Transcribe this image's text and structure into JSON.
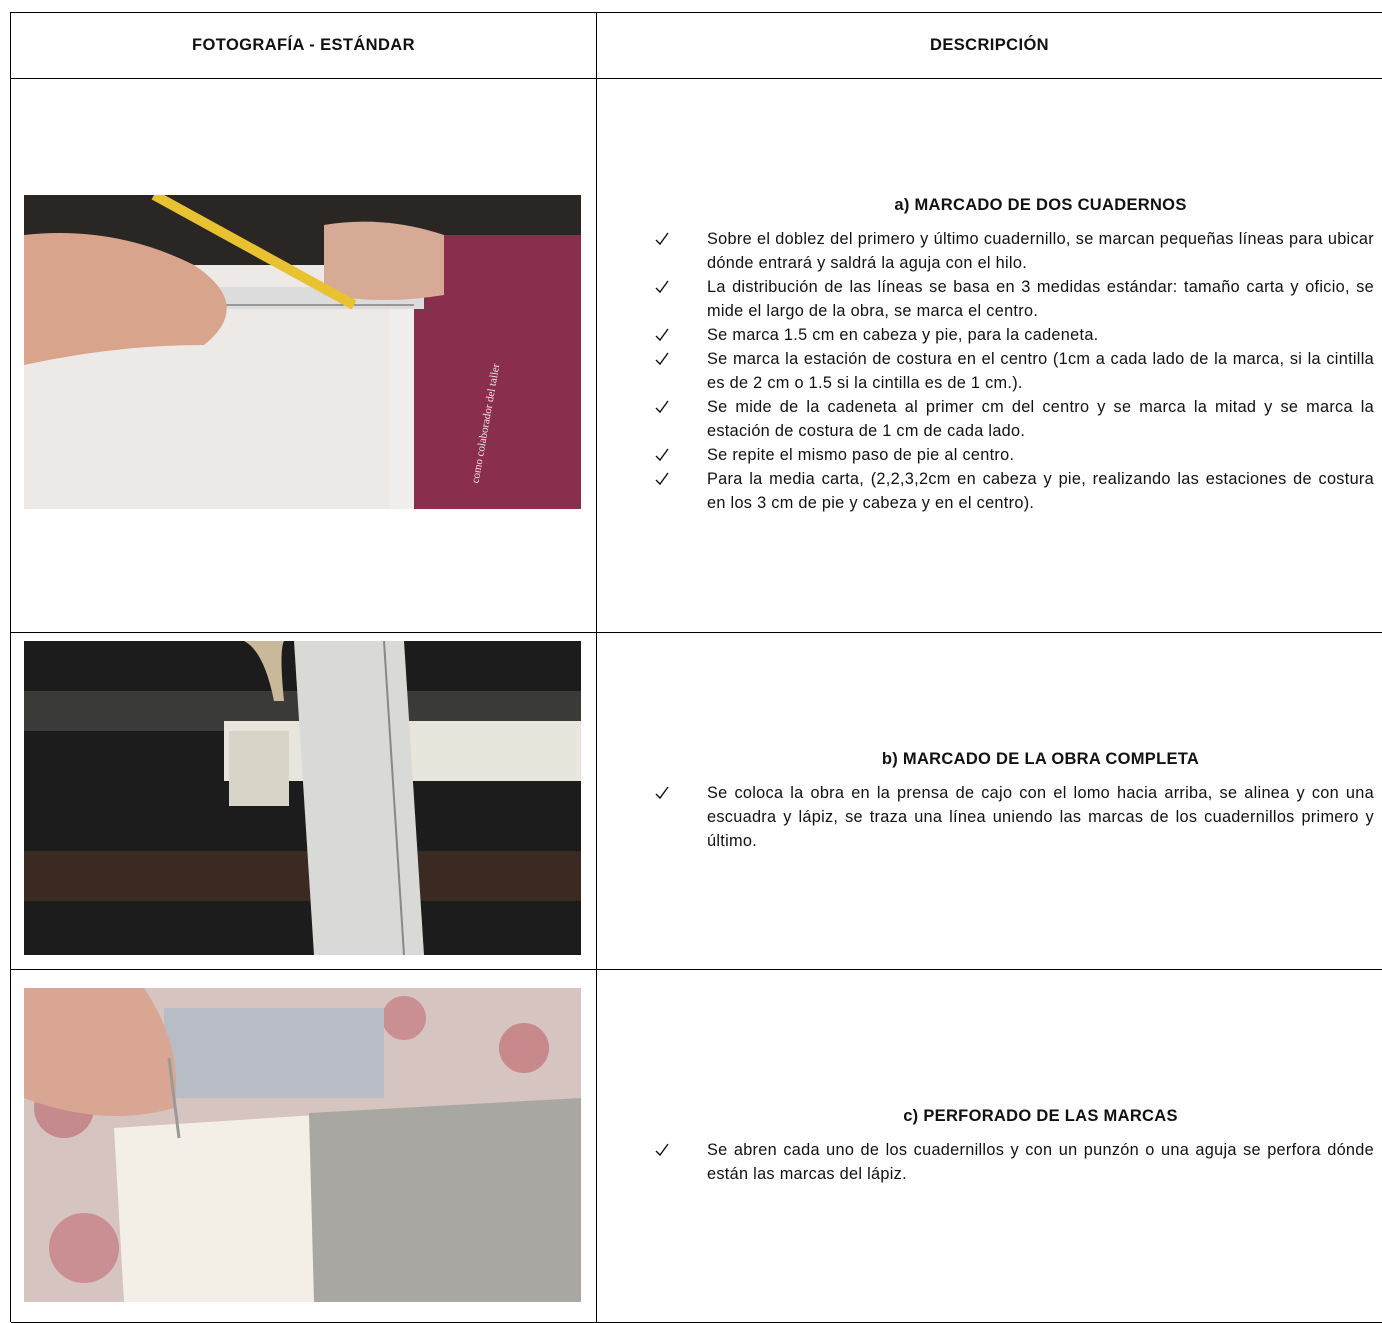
{
  "table": {
    "header": [
      "FOTOGRAFÍA - ESTÁNDAR",
      "DESCRIPCIÓN"
    ],
    "rows": [
      {
        "title": "a) MARCADO DE DOS CUADERNOS",
        "bullets": [
          "Sobre el doblez del primero y último cuadernillo, se marcan pequeñas líneas para ubicar dónde entrará y saldrá la aguja con el hilo.",
          "La distribución de las líneas se basa en 3 medidas estándar: tamaño carta y oficio, se mide el largo de la obra, se marca el centro.",
          "Se marca 1.5 cm en cabeza y pie, para la cadeneta.",
          "Se marca la estación de costura en el centro (1cm a cada lado de la marca, si la cintilla es de 2 cm o 1.5 si la cintilla es de 1 cm.).",
          "Se mide de la cadeneta al primer cm del centro y se marca la mitad y se marca la estación de costura de 1 cm de cada lado.",
          "Se repite el mismo paso de pie al centro.",
          "Para la media carta, (2,2,3,2cm en cabeza y pie, realizando las estaciones de costura en los 3 cm de pie y cabeza y en el centro)."
        ]
      },
      {
        "title": "b) MARCADO DE LA OBRA COMPLETA",
        "bullets": [
          "Se coloca la obra en la prensa de cajo con el lomo hacia arriba, se alinea y con una escuadra y lápiz, se traza una línea uniendo las marcas de los cuadernillos primero y último."
        ]
      },
      {
        "title": "c) PERFORADO DE LAS MARCAS",
        "bullets": [
          "Se abren cada uno de los cuadernillos y con un punzón o una aguja se perfora dónde están las marcas del lápiz."
        ]
      }
    ]
  }
}
